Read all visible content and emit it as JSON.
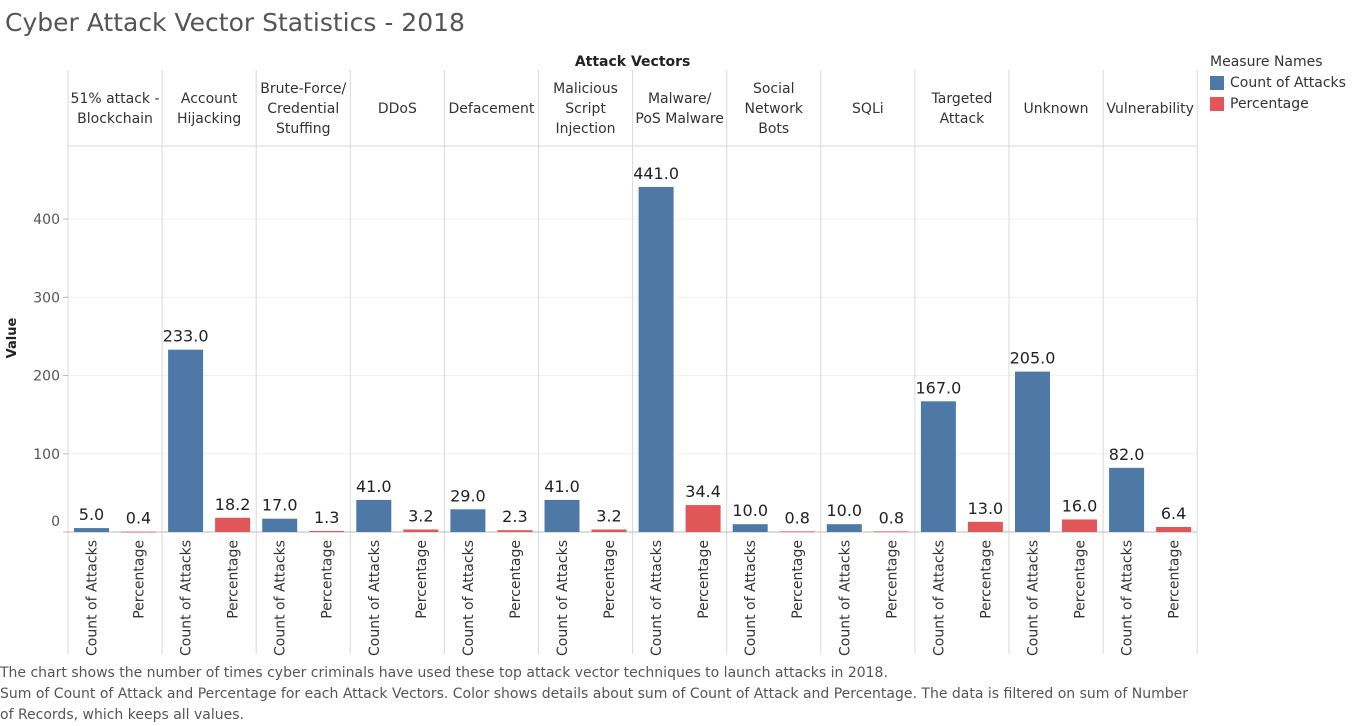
{
  "title": "Cyber Attack Vector Statistics - 2018",
  "colors": {
    "count": "#4e79a7",
    "percentage": "#e15759"
  },
  "legend": {
    "title": "Measure Names",
    "items": [
      "Count of Attacks",
      "Percentage"
    ]
  },
  "footer": {
    "line1": "The chart shows the number of times cyber criminals have used these top attack vector techniques to launch attacks in 2018.",
    "line2": "Sum of Count of Attack and Percentage for each Attack Vectors.  Color shows details about sum of Count of Attack and Percentage. The data is filtered on sum of Number of Records, which keeps all values."
  },
  "chart_data": {
    "type": "bar",
    "column_header": "Attack Vectors",
    "ylabel": "Value",
    "ylim": [
      0,
      450
    ],
    "yticks": [
      0,
      100,
      200,
      300,
      400
    ],
    "grid": true,
    "legend_position": "right",
    "categories": [
      [
        "51% attack -",
        "Blockchain"
      ],
      [
        "Account",
        "Hijacking"
      ],
      [
        "Brute-Force/",
        "Credential",
        "Stuffing"
      ],
      [
        "DDoS"
      ],
      [
        "Defacement"
      ],
      [
        "Malicious",
        "Script",
        "Injection"
      ],
      [
        "Malware/",
        "PoS Malware"
      ],
      [
        "Social",
        "Network",
        "Bots"
      ],
      [
        "SQLi"
      ],
      [
        "Targeted",
        "Attack"
      ],
      [
        "Unknown"
      ],
      [
        "Vulnerability"
      ]
    ],
    "series": [
      {
        "name": "Count of Attacks",
        "values": [
          5.0,
          233.0,
          17.0,
          41.0,
          29.0,
          41.0,
          441.0,
          10.0,
          10.0,
          167.0,
          205.0,
          82.0
        ]
      },
      {
        "name": "Percentage",
        "values": [
          0.4,
          18.2,
          1.3,
          3.2,
          2.3,
          3.2,
          34.4,
          0.8,
          0.8,
          13.0,
          16.0,
          6.4
        ]
      }
    ],
    "value_labels": [
      [
        "5.0",
        "233.0",
        "17.0",
        "41.0",
        "29.0",
        "41.0",
        "441.0",
        "10.0",
        "10.0",
        "167.0",
        "205.0",
        "82.0"
      ],
      [
        "0.4",
        "18.2",
        "1.3",
        "3.2",
        "2.3",
        "3.2",
        "34.4",
        "0.8",
        "0.8",
        "13.0",
        "16.0",
        "6.4"
      ]
    ]
  }
}
